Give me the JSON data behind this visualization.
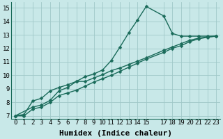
{
  "xlabel": "Humidex (Indice chaleur)",
  "xlim": [
    -0.5,
    23.5
  ],
  "ylim": [
    6.8,
    15.4
  ],
  "xticks": [
    0,
    1,
    2,
    3,
    4,
    5,
    6,
    7,
    8,
    9,
    10,
    11,
    12,
    13,
    14,
    15,
    17,
    18,
    19,
    20,
    21,
    22,
    23
  ],
  "yticks": [
    7,
    8,
    9,
    10,
    11,
    12,
    13,
    14,
    15
  ],
  "background_color": "#c8e8e8",
  "grid_color": "#a0c8c8",
  "line_color": "#1a6b5a",
  "line1_x": [
    0,
    1,
    2,
    3,
    4,
    5,
    6,
    7,
    8,
    9,
    10,
    11,
    12,
    13,
    14,
    15,
    17,
    18,
    19,
    20,
    21,
    22,
    23
  ],
  "line1_y": [
    7.0,
    7.1,
    8.1,
    8.3,
    8.85,
    9.1,
    9.3,
    9.55,
    9.9,
    10.1,
    10.4,
    11.1,
    12.1,
    13.15,
    14.1,
    15.1,
    14.4,
    13.1,
    12.9,
    12.9,
    12.9,
    12.9,
    12.9
  ],
  "line2_x": [
    0,
    2,
    3,
    4,
    5,
    6,
    7,
    8,
    9,
    10,
    11,
    12,
    13,
    14,
    15,
    17,
    18,
    19,
    20,
    21,
    22,
    23
  ],
  "line2_y": [
    7.0,
    7.65,
    7.8,
    8.15,
    8.85,
    9.1,
    9.55,
    9.55,
    9.8,
    10.05,
    10.35,
    10.55,
    10.8,
    11.05,
    11.3,
    11.85,
    12.1,
    12.35,
    12.6,
    12.75,
    12.85,
    12.9
  ],
  "line3_x": [
    0,
    1,
    2,
    3,
    4,
    5,
    6,
    7,
    8,
    9,
    10,
    11,
    12,
    13,
    14,
    15,
    17,
    18,
    19,
    20,
    21,
    22,
    23
  ],
  "line3_y": [
    7.0,
    7.0,
    7.5,
    7.65,
    8.0,
    8.5,
    8.7,
    8.9,
    9.2,
    9.5,
    9.75,
    10.0,
    10.3,
    10.6,
    10.9,
    11.2,
    11.7,
    12.0,
    12.2,
    12.5,
    12.7,
    12.82,
    12.9
  ],
  "marker": "D",
  "markersize": 2.5,
  "linewidth": 1.0,
  "tick_fontsize": 6.5,
  "xlabel_fontsize": 8
}
